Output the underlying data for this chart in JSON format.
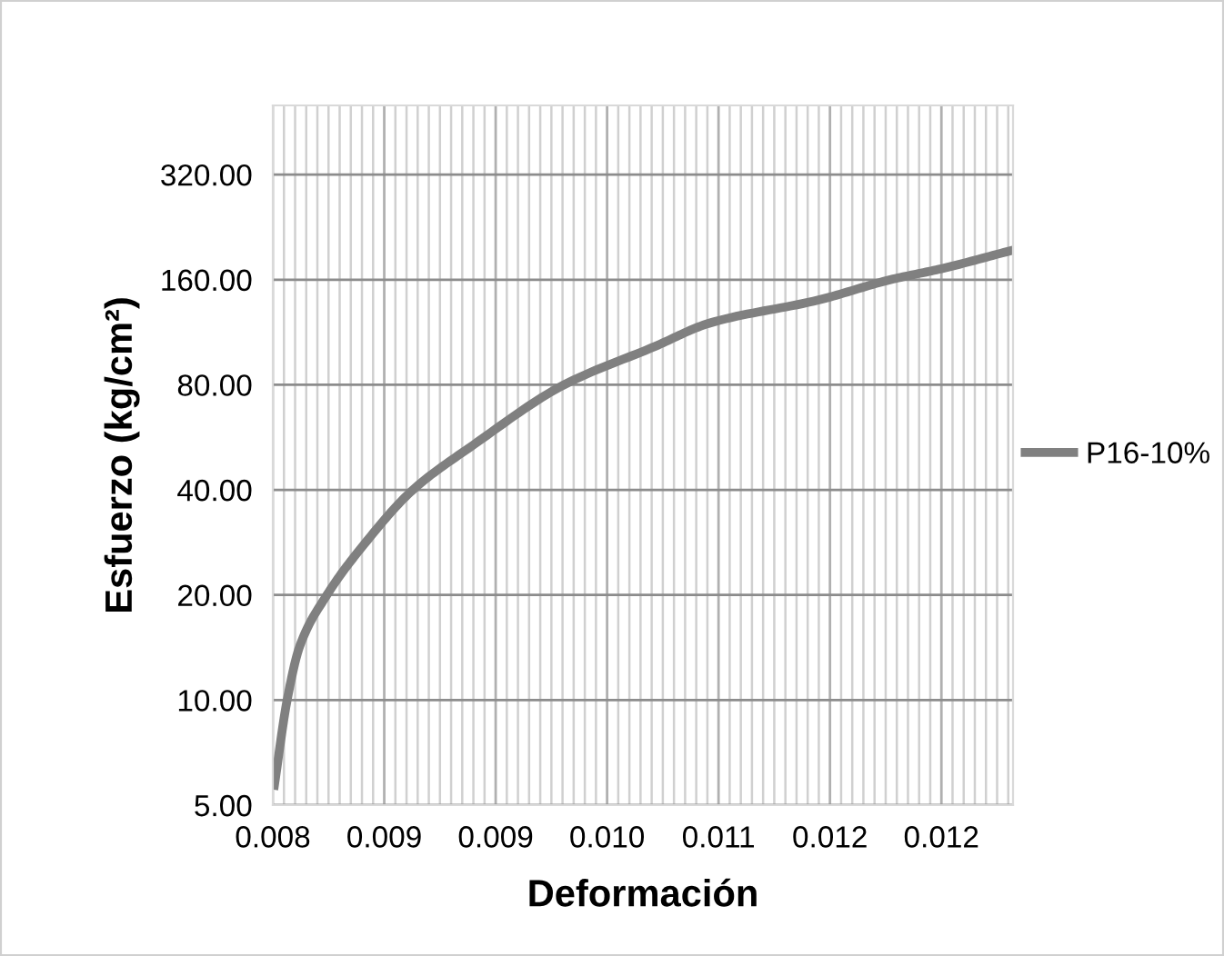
{
  "chart_data": {
    "type": "line",
    "xlabel": "Deformación",
    "ylabel": "Esfuerzo (kg/cm²)",
    "series": [
      {
        "name": "P16-10%",
        "color": "#808080",
        "x": [
          0.00801,
          0.00809,
          0.00817,
          0.00834,
          0.00857,
          0.00888,
          0.00926,
          0.00983,
          0.0104,
          0.01074,
          0.01143,
          0.01188,
          0.0122,
          0.01264
        ],
        "values": [
          5.7,
          10,
          14.3,
          20,
          27.8,
          40,
          53.8,
          80,
          103,
          120,
          140,
          160,
          172,
          194
        ]
      }
    ],
    "log": "y",
    "xlim": [
      0.008,
      0.01265
    ],
    "ylim": [
      5,
      505
    ],
    "xticks": [
      {
        "value": 0.008,
        "label": "0.008"
      },
      {
        "value": 0.0087,
        "label": "0.009"
      },
      {
        "value": 0.0094,
        "label": "0.009"
      },
      {
        "value": 0.0101,
        "label": "0.010"
      },
      {
        "value": 0.0108,
        "label": "0.011"
      },
      {
        "value": 0.0115,
        "label": "0.012"
      },
      {
        "value": 0.0122,
        "label": "0.012"
      }
    ],
    "yticks": [
      {
        "value": 5,
        "label": "5.00"
      },
      {
        "value": 10,
        "label": "10.00"
      },
      {
        "value": 20,
        "label": "20.00"
      },
      {
        "value": 40,
        "label": "40.00"
      },
      {
        "value": 80,
        "label": "80.00"
      },
      {
        "value": 160,
        "label": "160.00"
      },
      {
        "value": 320,
        "label": "320.00"
      }
    ],
    "grid": true,
    "legend": "right",
    "marker": "none",
    "line_style": "solid"
  }
}
